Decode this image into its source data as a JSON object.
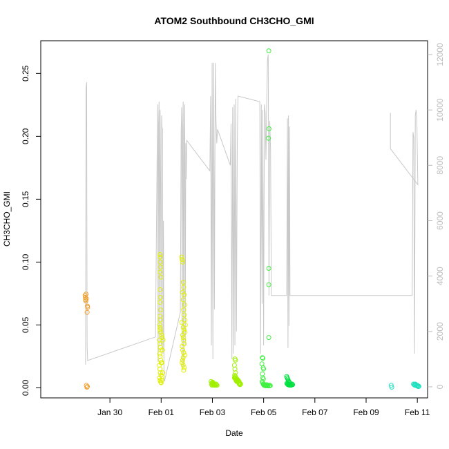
{
  "chart_data": {
    "type": "scatter",
    "title": "ATOM2 Southbound CH3CHO_GMI",
    "xlabel": "Date",
    "ylabel": "CH3CHO_GMI",
    "x_range_days": [
      -2.7,
      12.4
    ],
    "x_ticks": [
      {
        "day": 0,
        "label": "Jan 30"
      },
      {
        "day": 2,
        "label": "Feb 01"
      },
      {
        "day": 4,
        "label": "Feb 03"
      },
      {
        "day": 6,
        "label": "Feb 05"
      },
      {
        "day": 8,
        "label": "Feb 07"
      },
      {
        "day": 10,
        "label": "Feb 09"
      },
      {
        "day": 12,
        "label": "Feb 11"
      }
    ],
    "ylim": [
      -0.008,
      0.276
    ],
    "y_ticks": [
      0.0,
      0.05,
      0.1,
      0.15,
      0.2,
      0.25
    ],
    "y_tick_labels": [
      "0.00",
      "0.05",
      "0.10",
      "0.15",
      "0.20",
      "0.25"
    ],
    "y2_range": [
      -400,
      12500
    ],
    "y2_ticks": [
      0,
      2000,
      4000,
      6000,
      8000,
      10000,
      12000
    ],
    "y2_tick_labels": [
      "0",
      "2000",
      "4000",
      "6000",
      "8000",
      "10000",
      "12000"
    ],
    "grid": false,
    "altitude_trace": {
      "color": "#c8c8c8",
      "points": [
        [
          -0.95,
          800
        ],
        [
          -0.93,
          10800
        ],
        [
          -0.91,
          11000
        ],
        [
          -0.89,
          1500
        ],
        [
          -0.87,
          950
        ],
        [
          1.78,
          1800
        ],
        [
          1.82,
          6000
        ],
        [
          1.86,
          10200
        ],
        [
          1.88,
          900
        ],
        [
          1.9,
          9500
        ],
        [
          1.92,
          10300
        ],
        [
          1.94,
          1500
        ],
        [
          1.96,
          10000
        ],
        [
          1.98,
          7200
        ],
        [
          2.0,
          1500
        ],
        [
          2.02,
          9800
        ],
        [
          2.03,
          9400
        ],
        [
          2.05,
          9300
        ],
        [
          2.07,
          1200
        ],
        [
          2.09,
          6000
        ],
        [
          2.11,
          400
        ],
        [
          2.13,
          200
        ],
        [
          2.75,
          2700
        ],
        [
          2.78,
          9200
        ],
        [
          2.8,
          10100
        ],
        [
          2.82,
          600
        ],
        [
          2.84,
          9300
        ],
        [
          2.86,
          10300
        ],
        [
          2.88,
          700
        ],
        [
          2.9,
          9000
        ],
        [
          2.92,
          10200
        ],
        [
          2.94,
          1500
        ],
        [
          2.96,
          8800
        ],
        [
          2.98,
          7500
        ],
        [
          3.0,
          8900
        ],
        [
          3.9,
          7800
        ],
        [
          3.93,
          10500
        ],
        [
          3.96,
          1500
        ],
        [
          3.99,
          11700
        ],
        [
          4.02,
          1000
        ],
        [
          4.05,
          11700
        ],
        [
          4.08,
          2800
        ],
        [
          4.11,
          11700
        ],
        [
          4.14,
          9600
        ],
        [
          4.17,
          8800
        ],
        [
          4.2,
          9300
        ],
        [
          4.7,
          8000
        ],
        [
          4.73,
          9500
        ],
        [
          4.76,
          1000
        ],
        [
          4.79,
          10100
        ],
        [
          4.82,
          1200
        ],
        [
          4.85,
          10200
        ],
        [
          4.88,
          1500
        ],
        [
          4.91,
          10400
        ],
        [
          4.94,
          2000
        ],
        [
          4.97,
          8800
        ],
        [
          5.0,
          10500
        ],
        [
          5.85,
          10300
        ],
        [
          5.88,
          1200
        ],
        [
          5.91,
          10200
        ],
        [
          5.94,
          3000
        ],
        [
          5.97,
          10000
        ],
        [
          6.0,
          1500
        ],
        [
          6.03,
          10200
        ],
        [
          6.06,
          9900
        ],
        [
          6.09,
          8200
        ],
        [
          6.12,
          10200
        ],
        [
          6.15,
          11800
        ],
        [
          6.18,
          12000
        ],
        [
          6.21,
          3300
        ],
        [
          6.24,
          9600
        ],
        [
          6.27,
          8600
        ],
        [
          6.3,
          3300
        ],
        [
          6.33,
          3300
        ],
        [
          6.9,
          3300
        ],
        [
          6.93,
          9700
        ],
        [
          6.95,
          1400
        ],
        [
          6.97,
          9800
        ],
        [
          6.99,
          2200
        ],
        [
          7.01,
          9400
        ],
        [
          7.03,
          3300
        ],
        [
          11.8,
          3300
        ],
        [
          11.83,
          9200
        ],
        [
          11.86,
          9000
        ],
        [
          11.89,
          1200
        ],
        [
          11.92,
          9800
        ],
        [
          11.95,
          10000
        ],
        [
          11.98,
          9700
        ],
        [
          12.02,
          7300
        ],
        [
          10.95,
          8600
        ],
        [
          10.95,
          9900
        ]
      ]
    },
    "series": [
      {
        "color": "#f0a030",
        "points": [
          [
            -0.97,
            0.0735
          ],
          [
            -0.96,
            0.072
          ],
          [
            -0.95,
            0.07
          ],
          [
            -0.94,
            0.069
          ],
          [
            -0.93,
            0.0745
          ],
          [
            -0.92,
            0.071
          ],
          [
            -0.88,
            0.065
          ],
          [
            -0.87,
            0.064
          ],
          [
            -0.89,
            0.06
          ],
          [
            -0.92,
            0.002
          ],
          [
            -0.9,
            0.0005
          ],
          [
            -0.88,
            0.001
          ]
        ]
      },
      {
        "color": "#e0f000",
        "points": [
          [
            1.95,
            0.106
          ],
          [
            1.96,
            0.104
          ],
          [
            1.97,
            0.1
          ],
          [
            1.98,
            0.096
          ],
          [
            1.95,
            0.092
          ],
          [
            1.99,
            0.088
          ],
          [
            1.96,
            0.078
          ],
          [
            1.97,
            0.072
          ],
          [
            1.95,
            0.068
          ],
          [
            1.98,
            0.062
          ],
          [
            1.96,
            0.057
          ],
          [
            1.97,
            0.054
          ],
          [
            1.94,
            0.05
          ],
          [
            1.95,
            0.048
          ],
          [
            1.96,
            0.046
          ],
          [
            1.98,
            0.044
          ],
          [
            2.02,
            0.042
          ],
          [
            2.04,
            0.04
          ],
          [
            1.93,
            0.038
          ],
          [
            1.95,
            0.035
          ],
          [
            1.97,
            0.032
          ],
          [
            1.99,
            0.03
          ],
          [
            1.94,
            0.027
          ],
          [
            1.96,
            0.025
          ],
          [
            1.98,
            0.022
          ],
          [
            2.0,
            0.02
          ],
          [
            1.93,
            0.018
          ],
          [
            1.95,
            0.015
          ],
          [
            1.97,
            0.012
          ],
          [
            1.99,
            0.01
          ],
          [
            1.94,
            0.008
          ],
          [
            1.96,
            0.006
          ],
          [
            1.98,
            0.0045
          ],
          [
            2.0,
            0.004
          ],
          [
            2.02,
            0.006
          ],
          [
            2.04,
            0.009
          ],
          [
            2.06,
            0.012
          ],
          [
            2.03,
            0.02
          ],
          [
            2.05,
            0.03
          ],
          [
            2.07,
            0.038
          ],
          [
            2.8,
            0.104
          ],
          [
            2.82,
            0.102
          ],
          [
            2.84,
            0.1
          ],
          [
            2.86,
            0.084
          ],
          [
            2.88,
            0.08
          ],
          [
            2.84,
            0.076
          ],
          [
            2.9,
            0.074
          ],
          [
            2.86,
            0.07
          ],
          [
            2.92,
            0.066
          ],
          [
            2.88,
            0.062
          ],
          [
            2.9,
            0.058
          ],
          [
            2.92,
            0.054
          ],
          [
            2.8,
            0.052
          ],
          [
            2.94,
            0.05
          ],
          [
            2.86,
            0.048
          ],
          [
            2.9,
            0.046
          ],
          [
            2.92,
            0.044
          ],
          [
            2.84,
            0.042
          ],
          [
            2.86,
            0.04
          ],
          [
            2.88,
            0.038
          ],
          [
            2.9,
            0.035
          ],
          [
            2.82,
            0.033
          ],
          [
            2.84,
            0.03
          ],
          [
            2.88,
            0.028
          ],
          [
            2.92,
            0.026
          ],
          [
            2.86,
            0.024
          ],
          [
            2.84,
            0.022
          ],
          [
            2.82,
            0.02
          ],
          [
            2.86,
            0.018
          ],
          [
            2.9,
            0.016
          ],
          [
            2.88,
            0.014
          ]
        ]
      },
      {
        "color": "#a0f000",
        "points": [
          [
            3.95,
            0.005
          ],
          [
            3.98,
            0.004
          ],
          [
            4.0,
            0.003
          ],
          [
            4.02,
            0.0035
          ],
          [
            4.04,
            0.003
          ],
          [
            4.06,
            0.0025
          ],
          [
            4.08,
            0.002
          ],
          [
            4.1,
            0.0025
          ],
          [
            4.12,
            0.002
          ],
          [
            4.14,
            0.003
          ],
          [
            4.16,
            0.0025
          ],
          [
            4.18,
            0.002
          ],
          [
            3.97,
            0.0025
          ],
          [
            3.99,
            0.002
          ],
          [
            4.01,
            0.0045
          ],
          [
            4.03,
            0.004
          ],
          [
            4.88,
            0.023
          ],
          [
            4.9,
            0.022
          ],
          [
            4.86,
            0.018
          ],
          [
            4.88,
            0.015
          ],
          [
            4.9,
            0.012
          ],
          [
            4.87,
            0.01
          ],
          [
            4.89,
            0.009
          ],
          [
            4.91,
            0.0085
          ],
          [
            4.86,
            0.008
          ],
          [
            4.88,
            0.0075
          ],
          [
            4.9,
            0.007
          ],
          [
            4.92,
            0.0065
          ],
          [
            4.94,
            0.006
          ],
          [
            4.96,
            0.007
          ],
          [
            4.98,
            0.0065
          ],
          [
            5.0,
            0.006
          ],
          [
            5.02,
            0.0055
          ],
          [
            5.04,
            0.005
          ],
          [
            5.06,
            0.004
          ],
          [
            5.08,
            0.0035
          ],
          [
            5.1,
            0.003
          ],
          [
            5.08,
            0.0025
          ],
          [
            5.05,
            0.003
          ],
          [
            5.03,
            0.004
          ],
          [
            4.95,
            0.005
          ],
          [
            4.93,
            0.0055
          ]
        ]
      },
      {
        "color": "#40f040",
        "points": [
          [
            6.2,
            0.268
          ],
          [
            6.21,
            0.206
          ],
          [
            6.19,
            0.1985
          ],
          [
            6.2,
            0.095
          ],
          [
            6.2,
            0.082
          ],
          [
            6.2,
            0.04
          ],
          [
            5.95,
            0.024
          ],
          [
            5.97,
            0.0235
          ],
          [
            5.93,
            0.019
          ],
          [
            5.98,
            0.016
          ],
          [
            6.0,
            0.015
          ],
          [
            5.95,
            0.011
          ],
          [
            5.97,
            0.008
          ],
          [
            5.99,
            0.007
          ],
          [
            5.94,
            0.005
          ],
          [
            5.96,
            0.004
          ],
          [
            5.98,
            0.003
          ],
          [
            6.0,
            0.0025
          ],
          [
            6.02,
            0.002
          ],
          [
            6.04,
            0.0025
          ],
          [
            6.06,
            0.002
          ],
          [
            6.08,
            0.0015
          ],
          [
            6.1,
            0.002
          ],
          [
            6.12,
            0.0025
          ],
          [
            6.14,
            0.002
          ],
          [
            6.16,
            0.0015
          ],
          [
            6.18,
            0.002
          ],
          [
            6.22,
            0.0015
          ],
          [
            6.24,
            0.002
          ],
          [
            6.26,
            0.0018
          ]
        ]
      },
      {
        "color": "#00e040",
        "points": [
          [
            6.9,
            0.009
          ],
          [
            6.92,
            0.008
          ],
          [
            6.94,
            0.007
          ],
          [
            6.96,
            0.006
          ],
          [
            6.98,
            0.005
          ],
          [
            7.0,
            0.0045
          ],
          [
            7.02,
            0.004
          ],
          [
            6.91,
            0.0035
          ],
          [
            6.93,
            0.003
          ],
          [
            6.95,
            0.0025
          ],
          [
            6.97,
            0.003
          ],
          [
            6.99,
            0.0025
          ],
          [
            7.01,
            0.002
          ],
          [
            7.03,
            0.003
          ],
          [
            7.05,
            0.0025
          ],
          [
            7.07,
            0.002
          ],
          [
            7.09,
            0.0025
          ],
          [
            7.11,
            0.003
          ],
          [
            7.13,
            0.0025
          ]
        ]
      },
      {
        "color": "#20e0c0",
        "points": [
          [
            10.98,
            0.002
          ],
          [
            11.0,
            0.0005
          ],
          [
            11.85,
            0.003
          ],
          [
            11.88,
            0.0025
          ],
          [
            11.9,
            0.002
          ],
          [
            11.92,
            0.003
          ],
          [
            11.94,
            0.0025
          ],
          [
            11.96,
            0.002
          ],
          [
            11.98,
            0.0015
          ],
          [
            12.0,
            0.002
          ],
          [
            12.02,
            0.0015
          ],
          [
            12.04,
            0.001
          ],
          [
            12.06,
            0.0012
          ]
        ]
      }
    ]
  }
}
